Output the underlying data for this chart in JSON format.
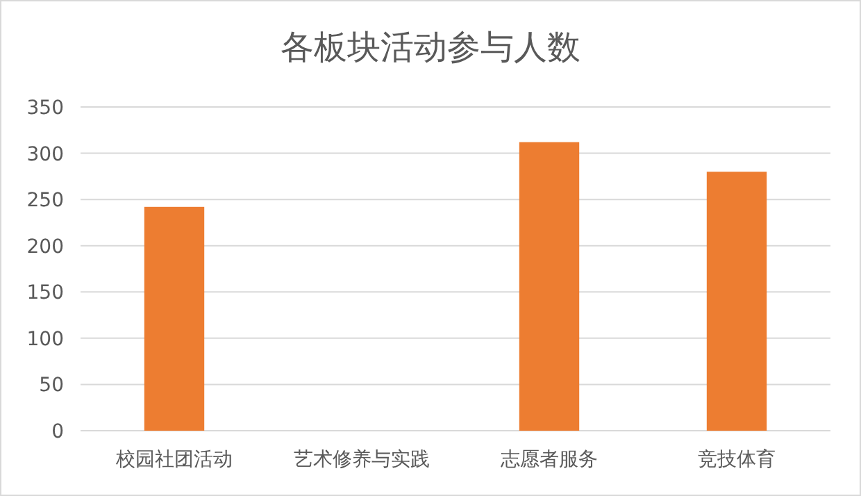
{
  "chart_data": {
    "type": "bar",
    "title": "各板块活动参与人数",
    "categories": [
      "校园社团活动",
      "艺术修养与实践",
      "志愿者服务",
      "竞技体育"
    ],
    "values": [
      242,
      null,
      312,
      280
    ],
    "color": "#ed7d31",
    "ylim": [
      0,
      350
    ],
    "yticks": [
      0,
      50,
      100,
      150,
      200,
      250,
      300,
      350
    ],
    "grid": "y"
  }
}
